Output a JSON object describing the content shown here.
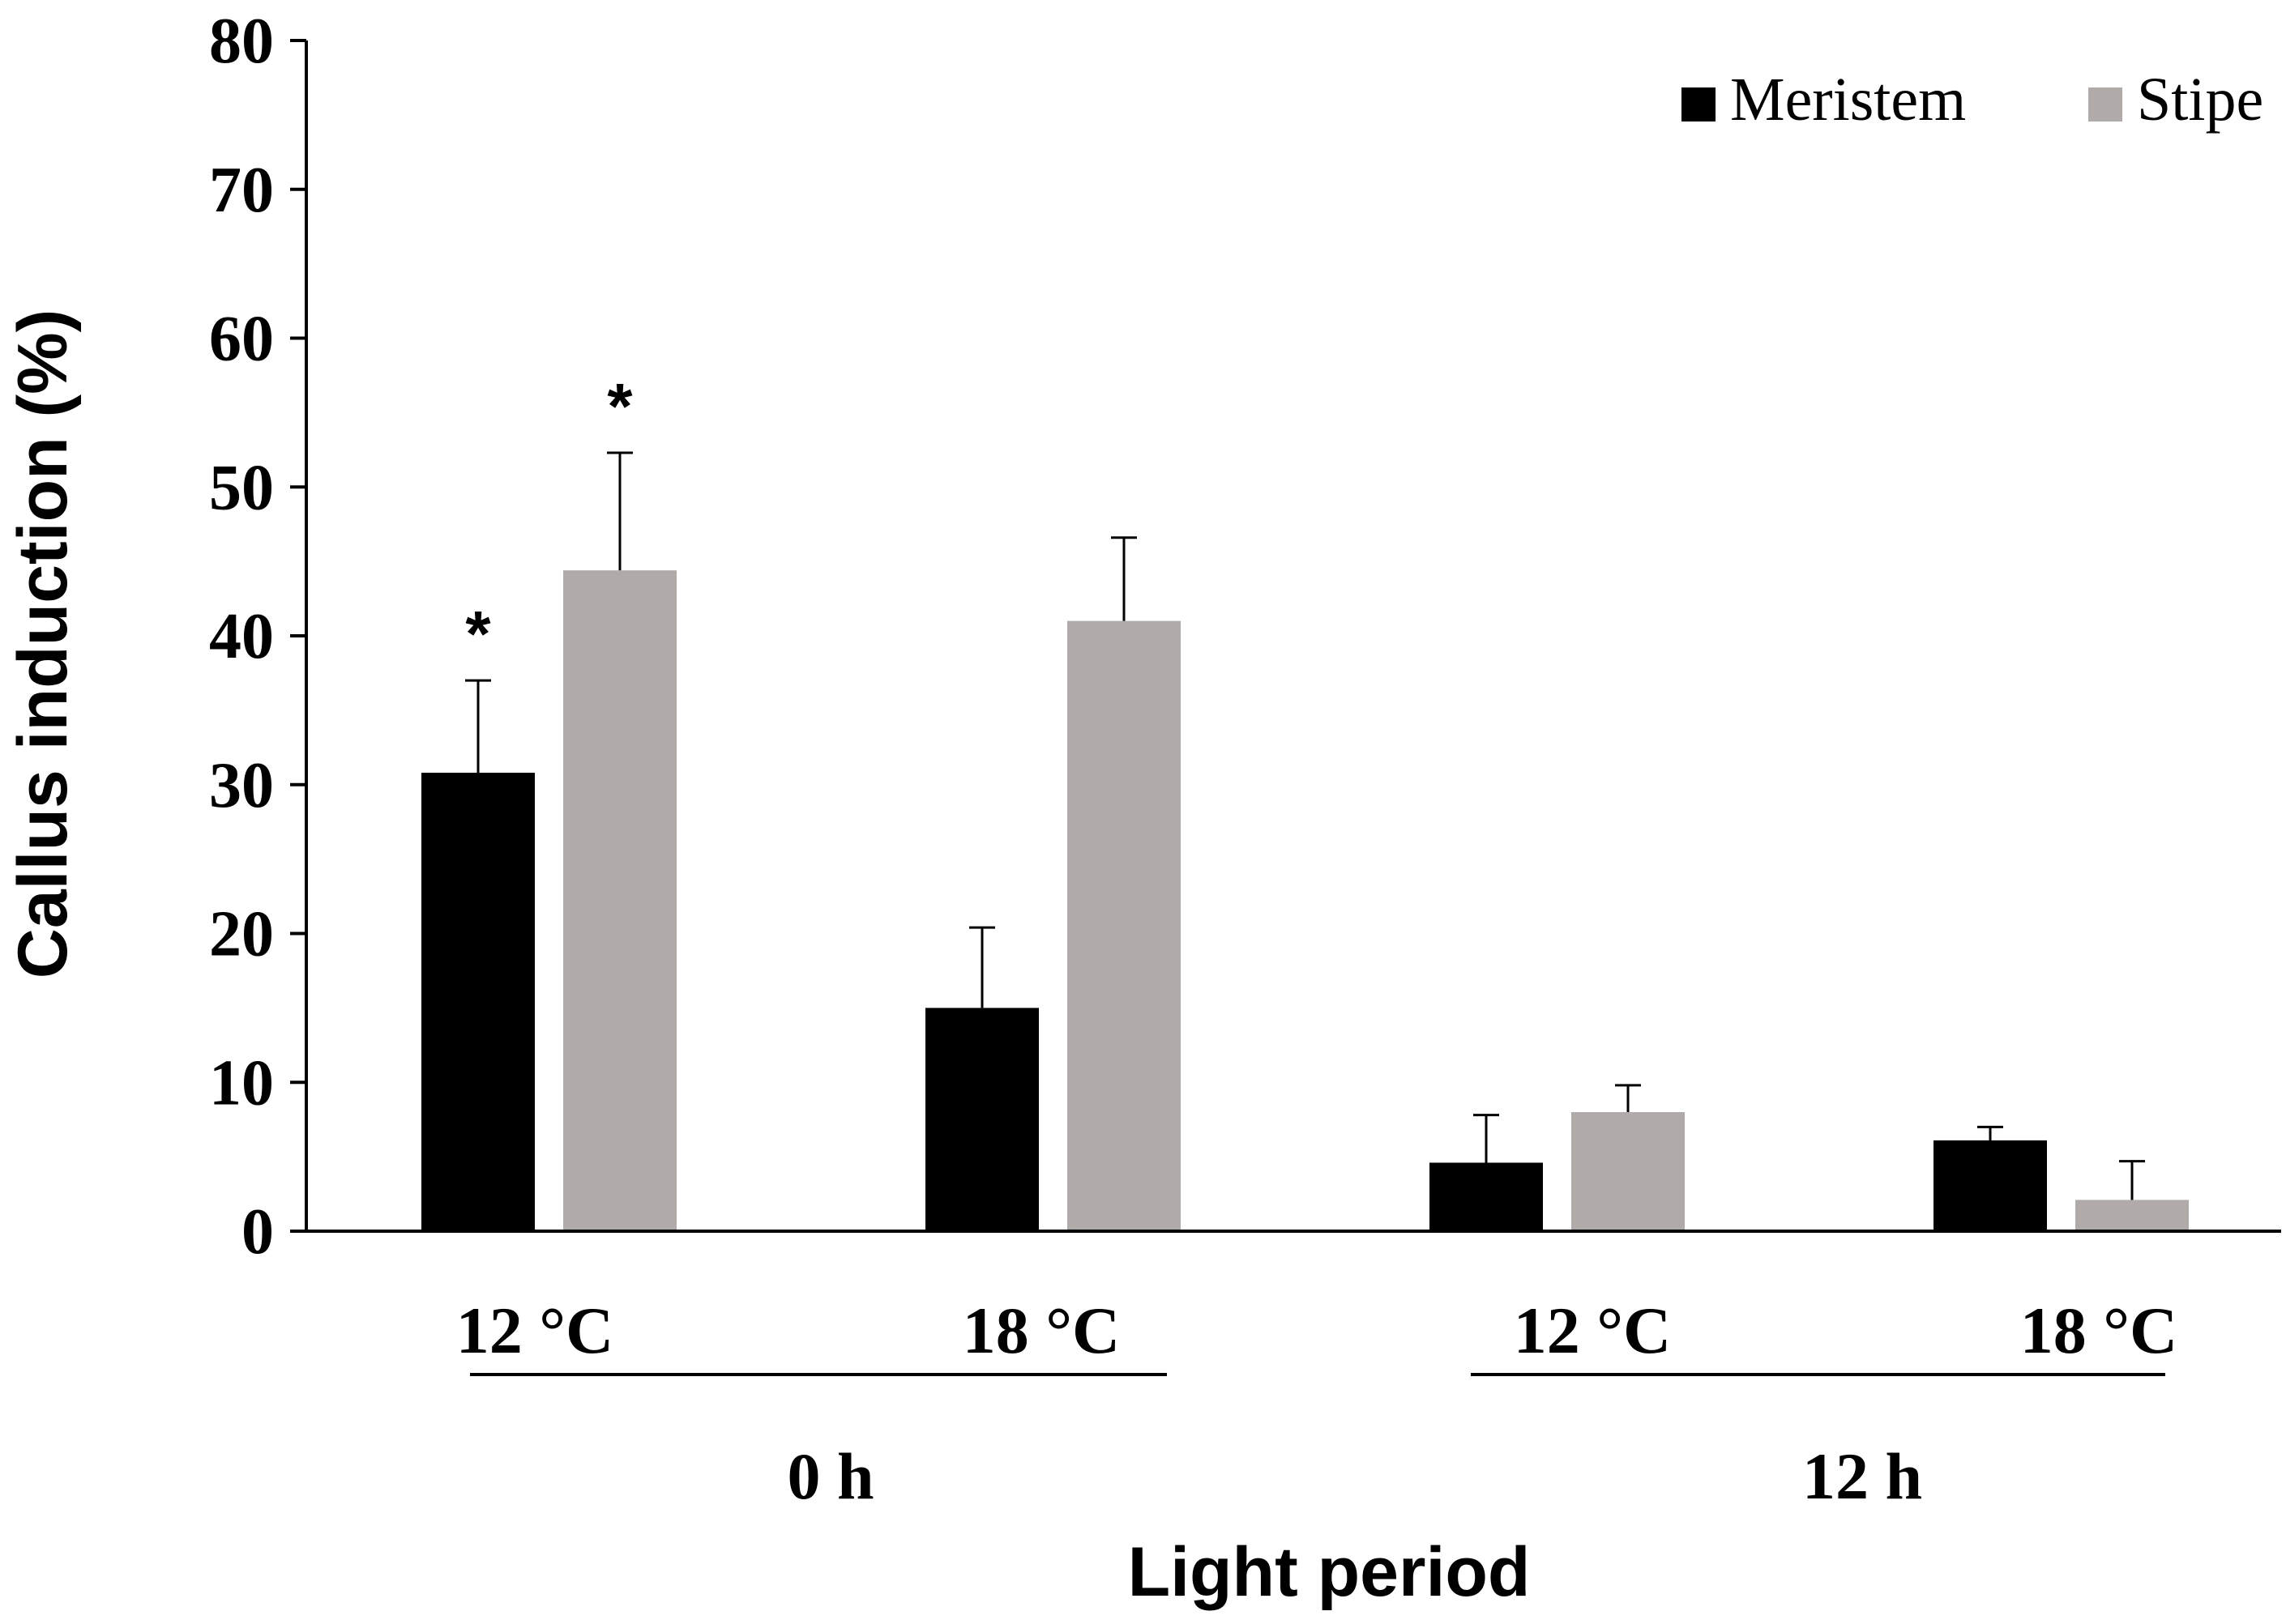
{
  "chart_data": {
    "type": "bar",
    "title": "",
    "ylabel": "Callus induction (%)",
    "xlabel": "Light period",
    "ylim": [
      0,
      80
    ],
    "yticks": [
      0,
      10,
      20,
      30,
      40,
      50,
      60,
      70,
      80
    ],
    "grid": false,
    "legend_position": "top-right",
    "categories": [
      "12 °C",
      "18 °C",
      "12 °C",
      "18 °C"
    ],
    "groups": [
      {
        "label": "0 h",
        "category_indices": [
          0,
          1
        ]
      },
      {
        "label": "12 h",
        "category_indices": [
          2,
          3
        ]
      }
    ],
    "series": [
      {
        "name": "Meristem",
        "color": "#000000",
        "values": [
          30.8,
          15.0,
          4.6,
          6.1
        ],
        "errors": [
          6.2,
          5.4,
          3.2,
          0.9
        ],
        "annotations": [
          "*",
          "",
          "",
          ""
        ]
      },
      {
        "name": "Stipe",
        "color": "#b0aba8",
        "values": [
          44.4,
          41.0,
          8.0,
          2.1
        ],
        "errors": [
          7.9,
          5.6,
          1.8,
          2.6
        ],
        "annotations": [
          "*",
          "",
          "",
          ""
        ]
      }
    ]
  }
}
